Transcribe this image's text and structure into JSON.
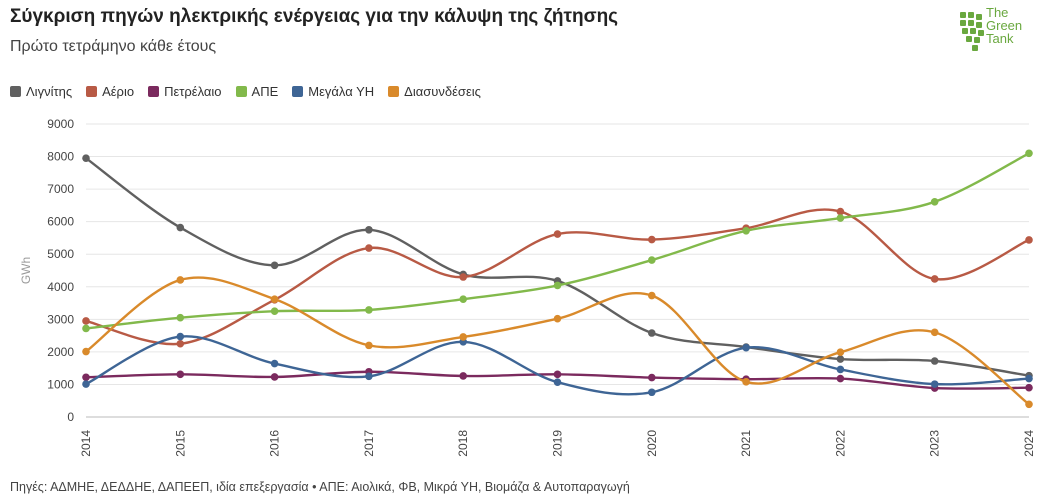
{
  "header": {
    "title": "Σύγκριση πηγών ηλεκτρικής ενέργειας για την κάλυψη της ζήτησης",
    "subtitle": "Πρώτο τετράμηνο κάθε έτους"
  },
  "logo": {
    "line1": "The",
    "line2": "Green",
    "line3": "Tank",
    "color": "#6aa83f"
  },
  "footer": {
    "source": "Πηγές: ΑΔΜΗΕ, ΔΕΔΔΗΕ, ΔΑΠΕΕΠ, ιδία επεξεργασία • ΑΠΕ: Αιολικά, ΦΒ, Μικρά ΥΗ, Βιομάζα & Αυτοπαραγωγή"
  },
  "chart_data": {
    "type": "line",
    "title": "Σύγκριση πηγών ηλεκτρικής ενέργειας για την κάλυψη της ζήτησης",
    "subtitle": "Πρώτο τετράμηνο κάθε έτους",
    "xlabel": "",
    "ylabel": "GWh",
    "ylim": [
      0,
      9000
    ],
    "yticks": [
      0,
      1000,
      2000,
      3000,
      4000,
      5000,
      6000,
      7000,
      8000,
      9000
    ],
    "grid": true,
    "legend_position": "top-left",
    "smooth": true,
    "x": [
      "2014",
      "2015",
      "2016",
      "2017",
      "2018",
      "2019",
      "2020",
      "2021",
      "2022",
      "2023",
      "2024"
    ],
    "series": [
      {
        "name": "Λιγνίτης",
        "color": "#606060",
        "values": [
          7950,
          5820,
          4660,
          5750,
          4380,
          4180,
          2580,
          2150,
          1780,
          1720,
          1270
        ]
      },
      {
        "name": "Αέριο",
        "color": "#b85a45",
        "values": [
          2950,
          2250,
          3600,
          5190,
          4300,
          5620,
          5450,
          5800,
          6310,
          4240,
          5440
        ]
      },
      {
        "name": "Πετρέλαιο",
        "color": "#7b2a5e",
        "values": [
          1220,
          1310,
          1230,
          1390,
          1260,
          1310,
          1210,
          1160,
          1180,
          890,
          900
        ]
      },
      {
        "name": "ΑΠΕ",
        "color": "#82b94b",
        "values": [
          2720,
          3050,
          3250,
          3290,
          3620,
          4040,
          4820,
          5720,
          6110,
          6610,
          8100
        ]
      },
      {
        "name": "Μεγάλα ΥΗ",
        "color": "#3e6595",
        "values": [
          1010,
          2470,
          1640,
          1250,
          2310,
          1070,
          760,
          2130,
          1460,
          1010,
          1180
        ]
      },
      {
        "name": "Διασυνδέσεις",
        "color": "#d98a2b",
        "values": [
          2010,
          4210,
          3620,
          2200,
          2460,
          3020,
          3730,
          1080,
          1990,
          2600,
          390
        ]
      }
    ]
  }
}
